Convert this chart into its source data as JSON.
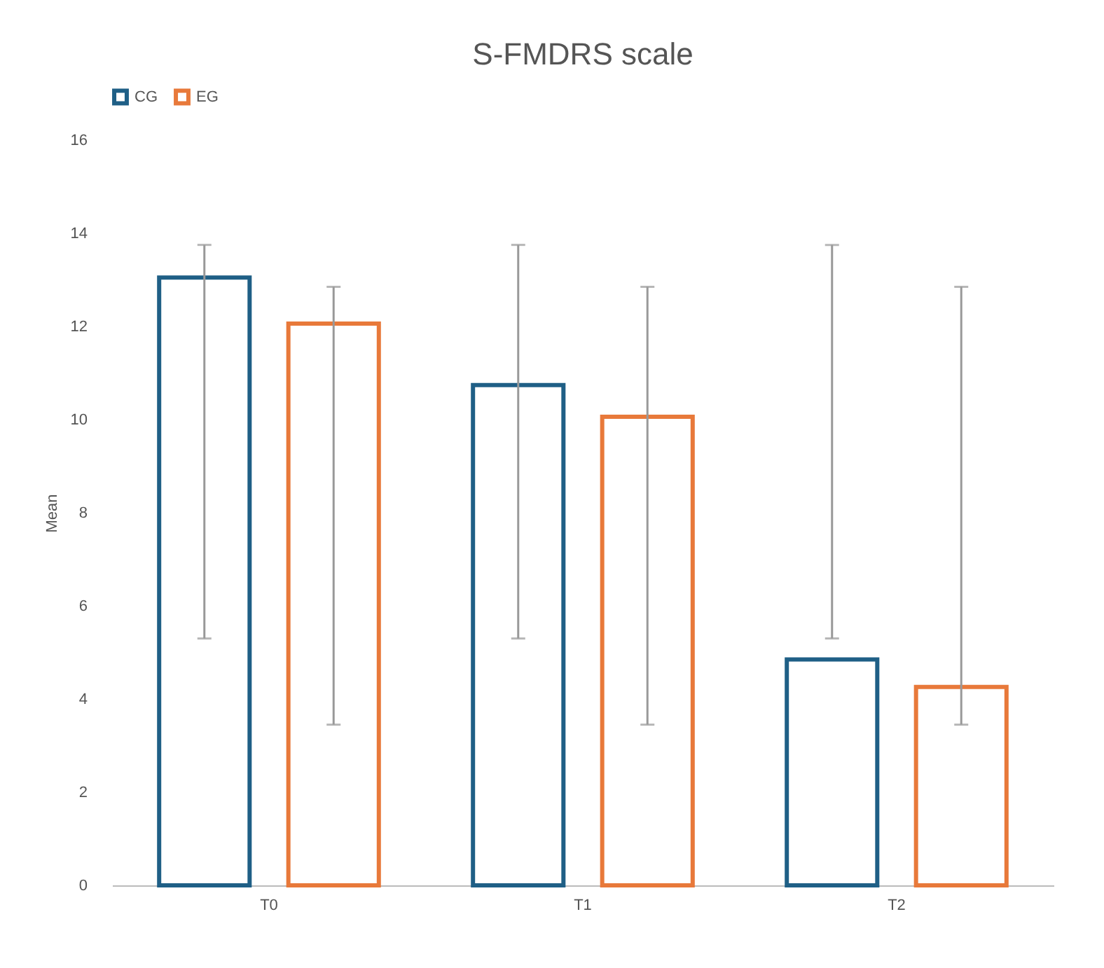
{
  "chart_data": {
    "type": "bar",
    "title": "S-FMDRS scale",
    "ylabel": "Mean",
    "categories": [
      "T0",
      "T1",
      "T2"
    ],
    "series": [
      {
        "name": "CG",
        "color": "#1f5f86",
        "values": [
          13.05,
          10.74,
          4.85
        ],
        "errors": [
          [
            5.3,
            13.75
          ],
          [
            5.3,
            13.75
          ],
          [
            5.3,
            13.75
          ]
        ]
      },
      {
        "name": "EG",
        "color": "#e8793a",
        "values": [
          12.06,
          10.06,
          4.26
        ],
        "errors": [
          [
            3.45,
            12.85
          ],
          [
            3.45,
            12.85
          ],
          [
            3.45,
            12.85
          ]
        ]
      }
    ],
    "ylim": [
      0,
      16
    ],
    "yticks": [
      0,
      2,
      4,
      6,
      8,
      10,
      12,
      14,
      16
    ],
    "grid": false,
    "legend": "top"
  }
}
